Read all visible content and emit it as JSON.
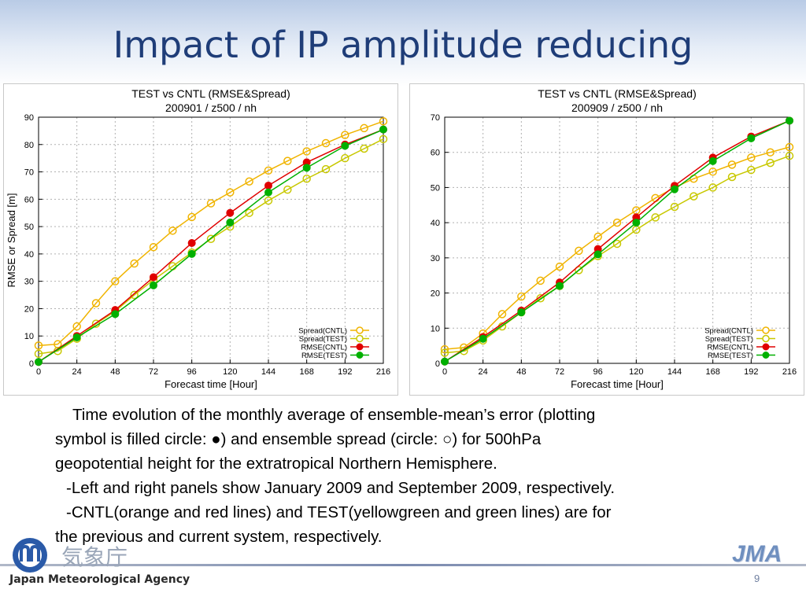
{
  "slide": {
    "title": "Impact of IP amplitude reducing",
    "page_number": "9"
  },
  "caption": {
    "lines": [
      "Time evolution of the monthly average of ensemble-mean’s error (plotting",
      "symbol is filled circle: ●) and ensemble spread (circle: ○) for 500hPa",
      "geopotential height for the extratropical Northern Hemisphere.",
      "-Left and right panels show January 2009 and September 2009, respectively.",
      "-CNTL(orange and red lines) and TEST(yellowgreen and green lines) are for",
      "the previous and current system, respectively."
    ]
  },
  "footer": {
    "agency_name_jp": "気象庁",
    "agency_name_en": "Japan Meteorological Agency",
    "brand_mark": "JMA"
  },
  "colors": {
    "title": "#1f3d78",
    "spread_cntl": "#f0b400",
    "spread_test": "#c8c800",
    "rmse_cntl": "#e00000",
    "rmse_test": "#00b000"
  },
  "chart_data": [
    {
      "type": "line",
      "title": "TEST vs CNTL (RMSE&Spread)",
      "subtitle": "200901 / z500 / nh",
      "xlabel": "Forecast time [Hour]",
      "ylabel": "RMSE or Spread [m]",
      "xlim": [
        0,
        216
      ],
      "ylim": [
        0,
        90
      ],
      "xticks": [
        0,
        24,
        48,
        72,
        96,
        120,
        144,
        168,
        192,
        216
      ],
      "yticks": [
        0,
        10,
        20,
        30,
        40,
        50,
        60,
        70,
        80,
        90
      ],
      "grid": true,
      "legend_position": "bottom-right",
      "series": [
        {
          "name": "Spread(CNTL)",
          "color": "#f0b400",
          "marker": "open-circle",
          "x": [
            0,
            12,
            24,
            36,
            48,
            60,
            72,
            84,
            96,
            108,
            120,
            132,
            144,
            156,
            168,
            180,
            192,
            204,
            216
          ],
          "y": [
            6.5,
            7,
            13.5,
            22,
            30,
            36.5,
            42.5,
            48.5,
            53.5,
            58.5,
            62.5,
            66.5,
            70.5,
            74,
            77.5,
            80.5,
            83.5,
            86,
            88.5
          ]
        },
        {
          "name": "Spread(TEST)",
          "color": "#c8c800",
          "marker": "open-circle",
          "x": [
            0,
            12,
            24,
            36,
            48,
            60,
            72,
            84,
            96,
            108,
            120,
            132,
            144,
            156,
            168,
            180,
            192,
            204,
            216
          ],
          "y": [
            3.5,
            4.5,
            9,
            14.5,
            19,
            25,
            30.5,
            35.5,
            40.5,
            45.5,
            50,
            55,
            59.5,
            63.5,
            67.5,
            71,
            75,
            78.5,
            82
          ]
        },
        {
          "name": "RMSE(CNTL)",
          "color": "#e00000",
          "marker": "filled-circle",
          "x": [
            0,
            24,
            48,
            72,
            96,
            120,
            144,
            168,
            192,
            216
          ],
          "y": [
            0.5,
            10,
            19.5,
            31.5,
            44,
            55,
            65,
            73.5,
            80,
            85.5
          ]
        },
        {
          "name": "RMSE(TEST)",
          "color": "#00b000",
          "marker": "filled-circle",
          "x": [
            0,
            24,
            48,
            72,
            96,
            120,
            144,
            168,
            192,
            216
          ],
          "y": [
            0.5,
            9.5,
            18,
            28.5,
            40,
            51.5,
            62.5,
            71.5,
            79.5,
            85.5
          ]
        }
      ]
    },
    {
      "type": "line",
      "title": "TEST vs CNTL (RMSE&Spread)",
      "subtitle": "200909 / z500 / nh",
      "xlabel": "Forecast time [Hour]",
      "ylabel": "",
      "xlim": [
        0,
        216
      ],
      "ylim": [
        0,
        70
      ],
      "xticks": [
        0,
        24,
        48,
        72,
        96,
        120,
        144,
        168,
        192,
        216
      ],
      "yticks": [
        0,
        10,
        20,
        30,
        40,
        50,
        60,
        70
      ],
      "grid": true,
      "legend_position": "bottom-right",
      "series": [
        {
          "name": "Spread(CNTL)",
          "color": "#f0b400",
          "marker": "open-circle",
          "x": [
            0,
            12,
            24,
            36,
            48,
            60,
            72,
            84,
            96,
            108,
            120,
            132,
            144,
            156,
            168,
            180,
            192,
            204,
            216
          ],
          "y": [
            4,
            4.5,
            8.5,
            14,
            19,
            23.5,
            27.5,
            32,
            36,
            40,
            43.5,
            47,
            50,
            52.5,
            54.5,
            56.5,
            58.5,
            60,
            61.5
          ]
        },
        {
          "name": "Spread(TEST)",
          "color": "#c8c800",
          "marker": "open-circle",
          "x": [
            0,
            12,
            24,
            36,
            48,
            60,
            72,
            84,
            96,
            108,
            120,
            132,
            144,
            156,
            168,
            180,
            192,
            204,
            216
          ],
          "y": [
            3,
            3.5,
            6.5,
            10.5,
            14.5,
            18.5,
            22,
            26.5,
            30.5,
            34,
            38,
            41.5,
            44.5,
            47.5,
            50,
            53,
            55,
            57,
            59
          ]
        },
        {
          "name": "RMSE(CNTL)",
          "color": "#e00000",
          "marker": "filled-circle",
          "x": [
            0,
            24,
            48,
            72,
            96,
            120,
            144,
            168,
            192,
            216
          ],
          "y": [
            0.5,
            7.5,
            15,
            23,
            32.5,
            41.5,
            50.5,
            58.5,
            64.5,
            69
          ]
        },
        {
          "name": "RMSE(TEST)",
          "color": "#00b000",
          "marker": "filled-circle",
          "x": [
            0,
            24,
            48,
            72,
            96,
            120,
            144,
            168,
            192,
            216
          ],
          "y": [
            0.5,
            7,
            14.5,
            22,
            31,
            40,
            49.5,
            57.5,
            64,
            69
          ]
        }
      ]
    }
  ]
}
